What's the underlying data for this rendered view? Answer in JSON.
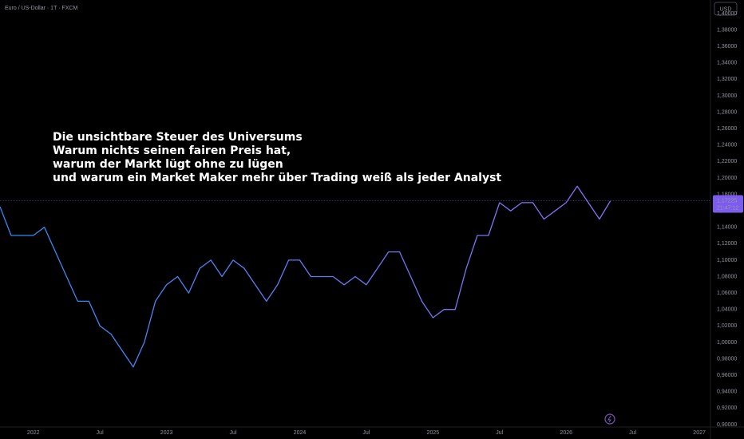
{
  "chart_data": {
    "type": "line",
    "title": "Euro / US-Dollar · 1T · FXCM",
    "currency_button": "USD",
    "annotation": [
      "Die unsichtbare Steuer des Universums",
      "Warum nichts seinen fairen Preis hat,",
      "warum der Markt lügt ohne zu lügen",
      "und warum ein Market Maker mehr über Trading weiß als jeder Analyst"
    ],
    "x": [
      "2021-10",
      "2021-11",
      "2021-12",
      "2022-01",
      "2022-02",
      "2022-03",
      "2022-04",
      "2022-05",
      "2022-06",
      "2022-07",
      "2022-08",
      "2022-09",
      "2022-10",
      "2022-11",
      "2022-12",
      "2023-01",
      "2023-02",
      "2023-03",
      "2023-04",
      "2023-05",
      "2023-06",
      "2023-07",
      "2023-08",
      "2023-09",
      "2023-10",
      "2023-11",
      "2023-12",
      "2024-01",
      "2024-02",
      "2024-03",
      "2024-04",
      "2024-05",
      "2024-06",
      "2024-07",
      "2024-08",
      "2024-09",
      "2024-10",
      "2024-11",
      "2024-12",
      "2025-01",
      "2025-02",
      "2025-03",
      "2025-04",
      "2025-05",
      "2025-06",
      "2025-07",
      "2025-08",
      "2025-09",
      "2025-10",
      "2025-11",
      "2025-12",
      "2026-01",
      "2026-02",
      "2026-03",
      "2026-04",
      "2026-05"
    ],
    "series": [
      {
        "name": "EURUSD",
        "color": "#5b7cf5",
        "gradient": [
          "#2f8cf0",
          "#8c6ff7"
        ],
        "values": [
          1.165,
          1.13,
          1.13,
          1.13,
          1.14,
          1.11,
          1.08,
          1.05,
          1.05,
          1.02,
          1.01,
          0.99,
          0.97,
          1.0,
          1.05,
          1.07,
          1.08,
          1.06,
          1.09,
          1.1,
          1.08,
          1.1,
          1.09,
          1.07,
          1.05,
          1.07,
          1.1,
          1.1,
          1.08,
          1.08,
          1.08,
          1.07,
          1.08,
          1.07,
          1.09,
          1.11,
          1.11,
          1.08,
          1.05,
          1.03,
          1.04,
          1.04,
          1.09,
          1.13,
          1.13,
          1.17,
          1.16,
          1.17,
          1.17,
          1.15,
          1.16,
          1.17,
          1.19,
          1.17,
          1.15,
          1.17225
        ]
      }
    ],
    "last_price": {
      "value": 1.17225,
      "label": "1,17225"
    },
    "countdown": "21:47:12",
    "xlim": [
      "2021-10",
      "2027-02"
    ],
    "xticks": [
      {
        "value": "2022-01",
        "label": "2022"
      },
      {
        "value": "2022-07",
        "label": "Jul"
      },
      {
        "value": "2023-01",
        "label": "2023"
      },
      {
        "value": "2023-07",
        "label": "Jul"
      },
      {
        "value": "2024-01",
        "label": "2024"
      },
      {
        "value": "2024-07",
        "label": "Jul"
      },
      {
        "value": "2025-01",
        "label": "2025"
      },
      {
        "value": "2025-07",
        "label": "Jul"
      },
      {
        "value": "2026-01",
        "label": "2026"
      },
      {
        "value": "2026-07",
        "label": "Jul"
      },
      {
        "value": "2027-01",
        "label": "2027"
      }
    ],
    "ylim": [
      0.897,
      1.4165
    ],
    "yticks": [
      {
        "value": 0.9,
        "label": "0,90000"
      },
      {
        "value": 0.92,
        "label": "0,92000"
      },
      {
        "value": 0.94,
        "label": "0,94000"
      },
      {
        "value": 0.96,
        "label": "0,96000"
      },
      {
        "value": 0.98,
        "label": "0,98000"
      },
      {
        "value": 1.0,
        "label": "1,00000"
      },
      {
        "value": 1.02,
        "label": "1,02000"
      },
      {
        "value": 1.04,
        "label": "1,04000"
      },
      {
        "value": 1.06,
        "label": "1,06000"
      },
      {
        "value": 1.08,
        "label": "1,08000"
      },
      {
        "value": 1.1,
        "label": "1,10000"
      },
      {
        "value": 1.12,
        "label": "1,12000"
      },
      {
        "value": 1.14,
        "label": "1,14000"
      },
      {
        "value": 1.16,
        "label": "1,16000"
      },
      {
        "value": 1.18,
        "label": "1,18000"
      },
      {
        "value": 1.2,
        "label": "1,20000"
      },
      {
        "value": 1.22,
        "label": "1,22000"
      },
      {
        "value": 1.24,
        "label": "1,24000"
      },
      {
        "value": 1.26,
        "label": "1,26000"
      },
      {
        "value": 1.28,
        "label": "1,28000"
      },
      {
        "value": 1.3,
        "label": "1,30000"
      },
      {
        "value": 1.32,
        "label": "1,32000"
      },
      {
        "value": 1.34,
        "label": "1,34000"
      },
      {
        "value": 1.36,
        "label": "1,36000"
      },
      {
        "value": 1.38,
        "label": "1,38000"
      },
      {
        "value": 1.4,
        "label": "1,40000"
      }
    ],
    "grid": false
  }
}
